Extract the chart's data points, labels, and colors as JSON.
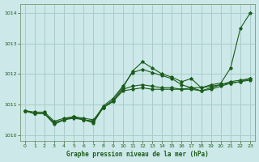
{
  "bg_color": "#cce8e8",
  "grid_color": "#aacccc",
  "line_color": "#1a5c1a",
  "marker_color": "#1a5c1a",
  "xlabel": "Graphe pression niveau de la mer (hPa)",
  "ylim": [
    1009.8,
    1014.3
  ],
  "xlim": [
    -0.5,
    23.5
  ],
  "yticks": [
    1010,
    1011,
    1012,
    1013,
    1014
  ],
  "xticks": [
    0,
    1,
    2,
    3,
    4,
    5,
    6,
    7,
    8,
    9,
    10,
    11,
    12,
    13,
    14,
    15,
    16,
    17,
    18,
    19,
    20,
    21,
    22,
    23
  ],
  "series": [
    [
      1010.8,
      1010.7,
      1010.7,
      1010.4,
      1010.5,
      1010.6,
      1010.5,
      1010.4,
      1010.9,
      1011.15,
      1011.55,
      1012.1,
      1012.4,
      1012.2,
      1012.0,
      1011.9,
      1011.75,
      1011.85,
      1011.55,
      1011.65,
      1011.7,
      1012.2,
      1013.5,
      1014.0
    ],
    [
      1010.8,
      1010.7,
      1010.7,
      1010.35,
      1010.5,
      1010.55,
      1010.5,
      1010.45,
      1010.95,
      1011.2,
      1011.6,
      1012.05,
      1012.15,
      1012.05,
      1011.95,
      1011.85,
      1011.65,
      1011.55,
      1011.45,
      1011.55,
      1011.65,
      1011.75,
      1011.8,
      1011.85
    ],
    [
      1010.8,
      1010.7,
      1010.7,
      1010.4,
      1010.5,
      1010.6,
      1010.5,
      1010.45,
      1010.9,
      1011.1,
      1011.5,
      1011.6,
      1011.65,
      1011.6,
      1011.55,
      1011.55,
      1011.5,
      1011.5,
      1011.45,
      1011.5,
      1011.6,
      1011.7,
      1011.75,
      1011.8
    ],
    [
      1010.8,
      1010.75,
      1010.75,
      1010.45,
      1010.55,
      1010.6,
      1010.55,
      1010.5,
      1010.9,
      1011.1,
      1011.45,
      1011.5,
      1011.55,
      1011.5,
      1011.5,
      1011.5,
      1011.5,
      1011.55,
      1011.55,
      1011.6,
      1011.65,
      1011.7,
      1011.75,
      1011.85
    ]
  ]
}
